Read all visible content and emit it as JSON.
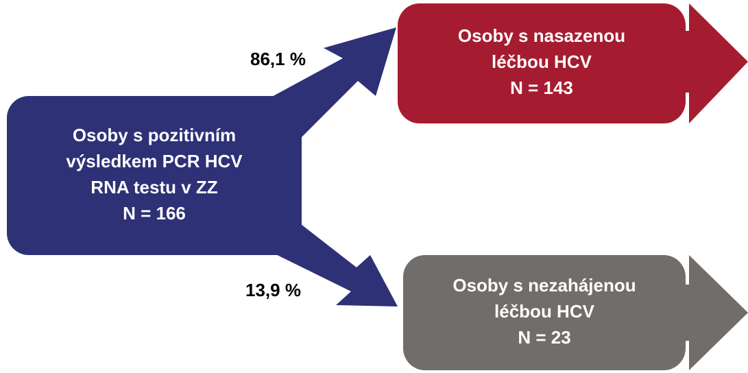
{
  "nodes": [
    {
      "lines": [
        "Osoby s pozitivním",
        "výsledkem PCR HCV",
        "RNA testu v ZZ",
        "N = 166"
      ]
    },
    {
      "lines": [
        "Osoby s nasazenou",
        "léčbou HCV",
        "N = 143"
      ]
    },
    {
      "lines": [
        "Osoby s nezahájenou",
        "léčbou HCV",
        "N = 23"
      ]
    }
  ],
  "edges": [
    {
      "label": "86,1 %"
    },
    {
      "label": "13,9 %"
    }
  ]
}
